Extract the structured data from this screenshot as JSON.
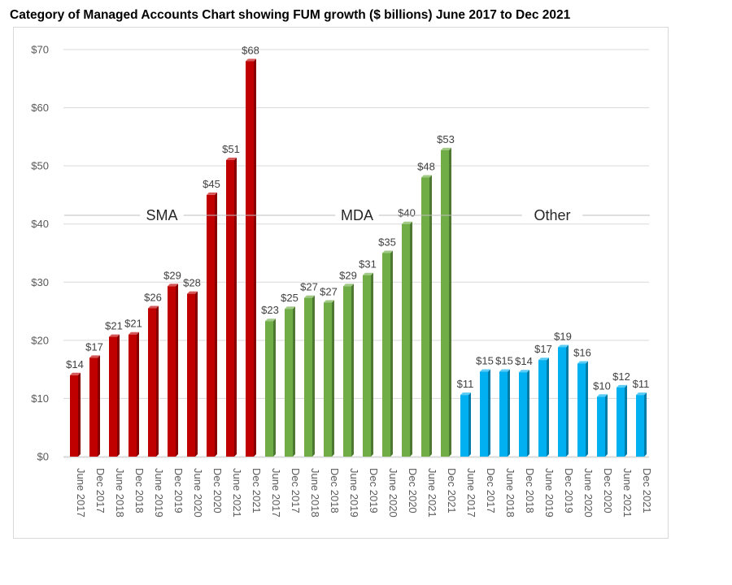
{
  "title": "Category of Managed Accounts Chart showing FUM growth ($ billions) June 2017 to Dec 2021",
  "chart_data": {
    "type": "bar",
    "title": "Category of Managed Accounts Chart showing FUM growth ($ billions) June 2017 to Dec 2021",
    "xlabel": "",
    "ylabel": "",
    "ylim": [
      0,
      70
    ],
    "yticks": [
      0,
      10,
      20,
      30,
      40,
      50,
      60,
      70
    ],
    "ytick_labels": [
      "$0",
      "$10",
      "$20",
      "$30",
      "$40",
      "$50",
      "$60",
      "$70"
    ],
    "grid": true,
    "categories": [
      "June 2017",
      "Dec 2017",
      "June 2018",
      "Dec 2018",
      "June 2019",
      "Dec 2019",
      "June 2020",
      "Dec 2020",
      "June 2021",
      "Dec 2021"
    ],
    "series": [
      {
        "name": "SMA",
        "color": "#c00000",
        "values": [
          14,
          17,
          20.6,
          21,
          25.5,
          29.3,
          28,
          45,
          51,
          68
        ],
        "labels": [
          "$14",
          "$17",
          "$21",
          "$21",
          "$26",
          "$29",
          "$28",
          "$45",
          "$51",
          "$68"
        ]
      },
      {
        "name": "MDA",
        "color": "#70ad47",
        "values": [
          23.3,
          25.4,
          27.3,
          26.5,
          29.3,
          31.2,
          35,
          40,
          48,
          52.7
        ],
        "labels": [
          "$23",
          "$25",
          "$27",
          "$27",
          "$29",
          "$31",
          "$35",
          "$40",
          "$48",
          "$53"
        ]
      },
      {
        "name": "Other",
        "color": "#00b0f0",
        "values": [
          10.6,
          14.6,
          14.6,
          14.5,
          16.6,
          18.8,
          16,
          10.3,
          11.9,
          10.6
        ],
        "labels": [
          "$11",
          "$15",
          "$15",
          "$14",
          "$17",
          "$19",
          "$16",
          "$10",
          "$12",
          "$11"
        ]
      }
    ]
  }
}
